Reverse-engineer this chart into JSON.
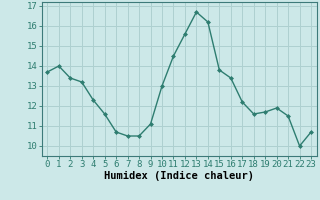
{
  "x": [
    0,
    1,
    2,
    3,
    4,
    5,
    6,
    7,
    8,
    9,
    10,
    11,
    12,
    13,
    14,
    15,
    16,
    17,
    18,
    19,
    20,
    21,
    22,
    23
  ],
  "y": [
    13.7,
    14.0,
    13.4,
    13.2,
    12.3,
    11.6,
    10.7,
    10.5,
    10.5,
    11.1,
    13.0,
    14.5,
    15.6,
    16.7,
    16.2,
    13.8,
    13.4,
    12.2,
    11.6,
    11.7,
    11.9,
    11.5,
    10.0,
    10.7
  ],
  "line_color": "#2e7d70",
  "marker": "D",
  "marker_size": 2.0,
  "bg_color": "#cce8e8",
  "grid_color": "#aed0d0",
  "xlabel": "Humidex (Indice chaleur)",
  "ylim": [
    9.5,
    17.2
  ],
  "xlim": [
    -0.5,
    23.5
  ],
  "yticks": [
    10,
    11,
    12,
    13,
    14,
    15,
    16,
    17
  ],
  "xticks": [
    0,
    1,
    2,
    3,
    4,
    5,
    6,
    7,
    8,
    9,
    10,
    11,
    12,
    13,
    14,
    15,
    16,
    17,
    18,
    19,
    20,
    21,
    22,
    23
  ],
  "xlabel_fontsize": 7.5,
  "tick_fontsize": 6.5,
  "line_width": 1.0
}
